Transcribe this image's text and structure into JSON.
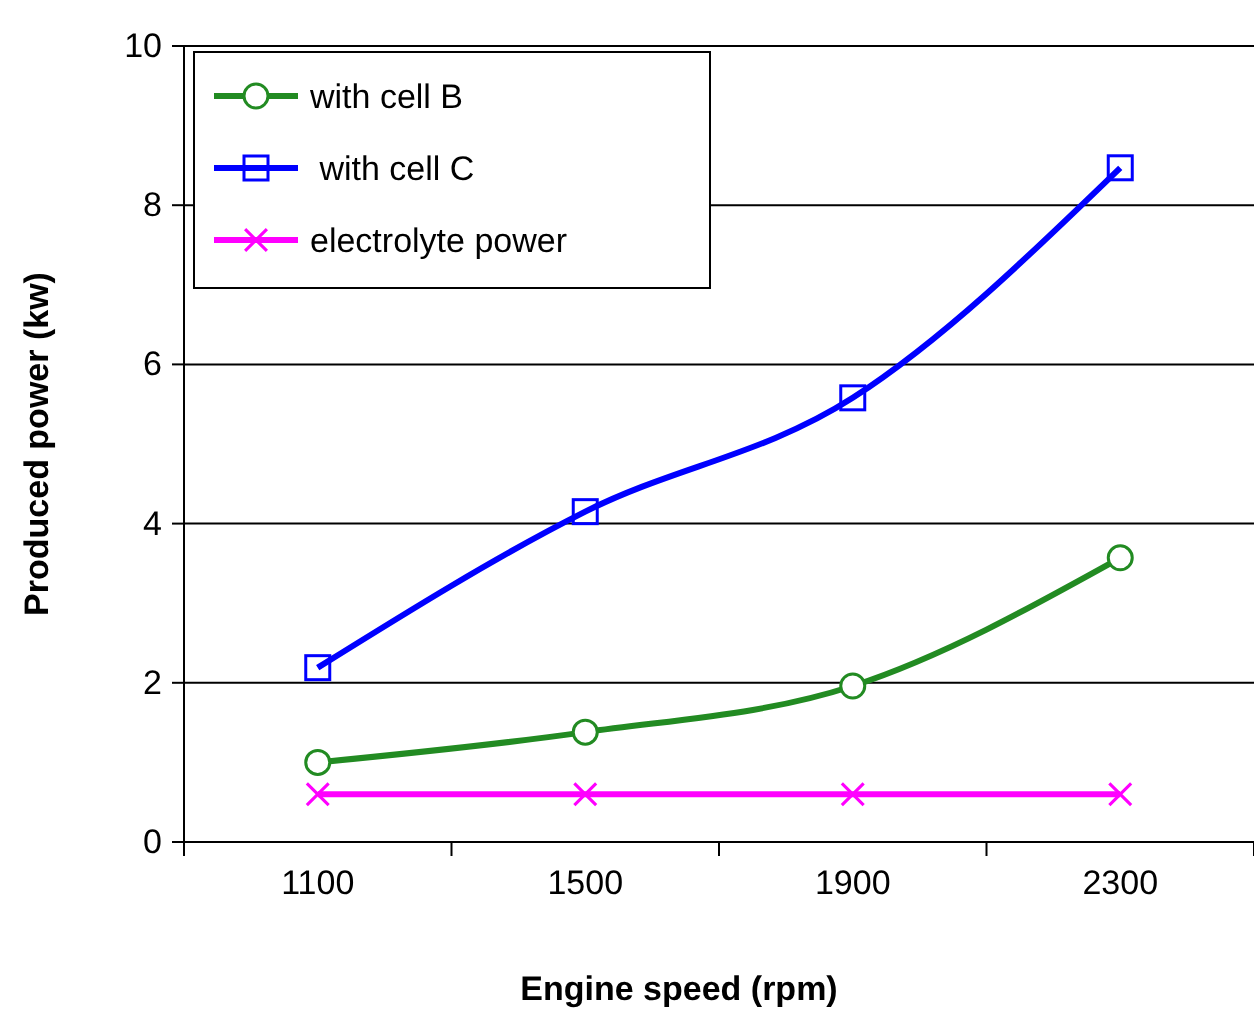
{
  "chart_data": {
    "type": "line",
    "xlabel": "Engine speed (rpm)",
    "ylabel": "Produced power (kw)",
    "categories": [
      "1100",
      "1500",
      "1900",
      "2300"
    ],
    "series": [
      {
        "name": "with cell B",
        "color": "#228b22",
        "marker": "circle",
        "values": [
          1.0,
          1.38,
          1.96,
          3.57
        ]
      },
      {
        "name": " with cell C",
        "color": "#0000ff",
        "marker": "square",
        "values": [
          2.19,
          4.15,
          5.58,
          8.47
        ]
      },
      {
        "name": "electrolyte power",
        "color": "#ff00ff",
        "marker": "cross",
        "values": [
          0.6,
          0.6,
          0.6,
          0.6
        ]
      }
    ],
    "ylim": [
      0,
      10
    ],
    "yticks": [
      0,
      2,
      4,
      6,
      8,
      10
    ],
    "grid": "y",
    "legend": "top left",
    "line_style": "solid"
  }
}
